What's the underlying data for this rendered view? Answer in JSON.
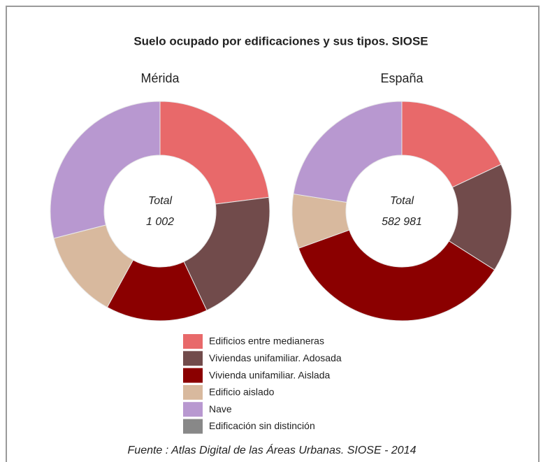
{
  "title": "Suelo ocupado por edificaciones y sus tipos. SIOSE",
  "source": "Fuente : Atlas Digital de las Áreas Urbanas. SIOSE - 2014",
  "chart_data": [
    {
      "type": "donut",
      "title": "Mérida",
      "center_label": "Total",
      "center_value": "1 002",
      "categories": [
        "Edificios entre medianeras",
        "Viviendas unifamiliar. Adosada",
        "Vivienda unifamiliar. Aislada",
        "Edificio aislado",
        "Nave",
        "Edificación sin distinción"
      ],
      "values": [
        23,
        20,
        15,
        13,
        29,
        0
      ],
      "colors": [
        "#e8696a",
        "#714b4b",
        "#8b0000",
        "#d8b99e",
        "#b898d0",
        "#888888"
      ]
    },
    {
      "type": "donut",
      "title": "España",
      "center_label": "Total",
      "center_value": "582 981",
      "categories": [
        "Edificios entre medianeras",
        "Viviendas unifamiliar. Adosada",
        "Vivienda unifamiliar. Aislada",
        "Edificio aislado",
        "Nave",
        "Edificación sin distinción"
      ],
      "values": [
        18,
        16,
        35.5,
        8,
        22.5,
        0
      ],
      "colors": [
        "#e8696a",
        "#714b4b",
        "#8b0000",
        "#d8b99e",
        "#b898d0",
        "#888888"
      ]
    }
  ]
}
